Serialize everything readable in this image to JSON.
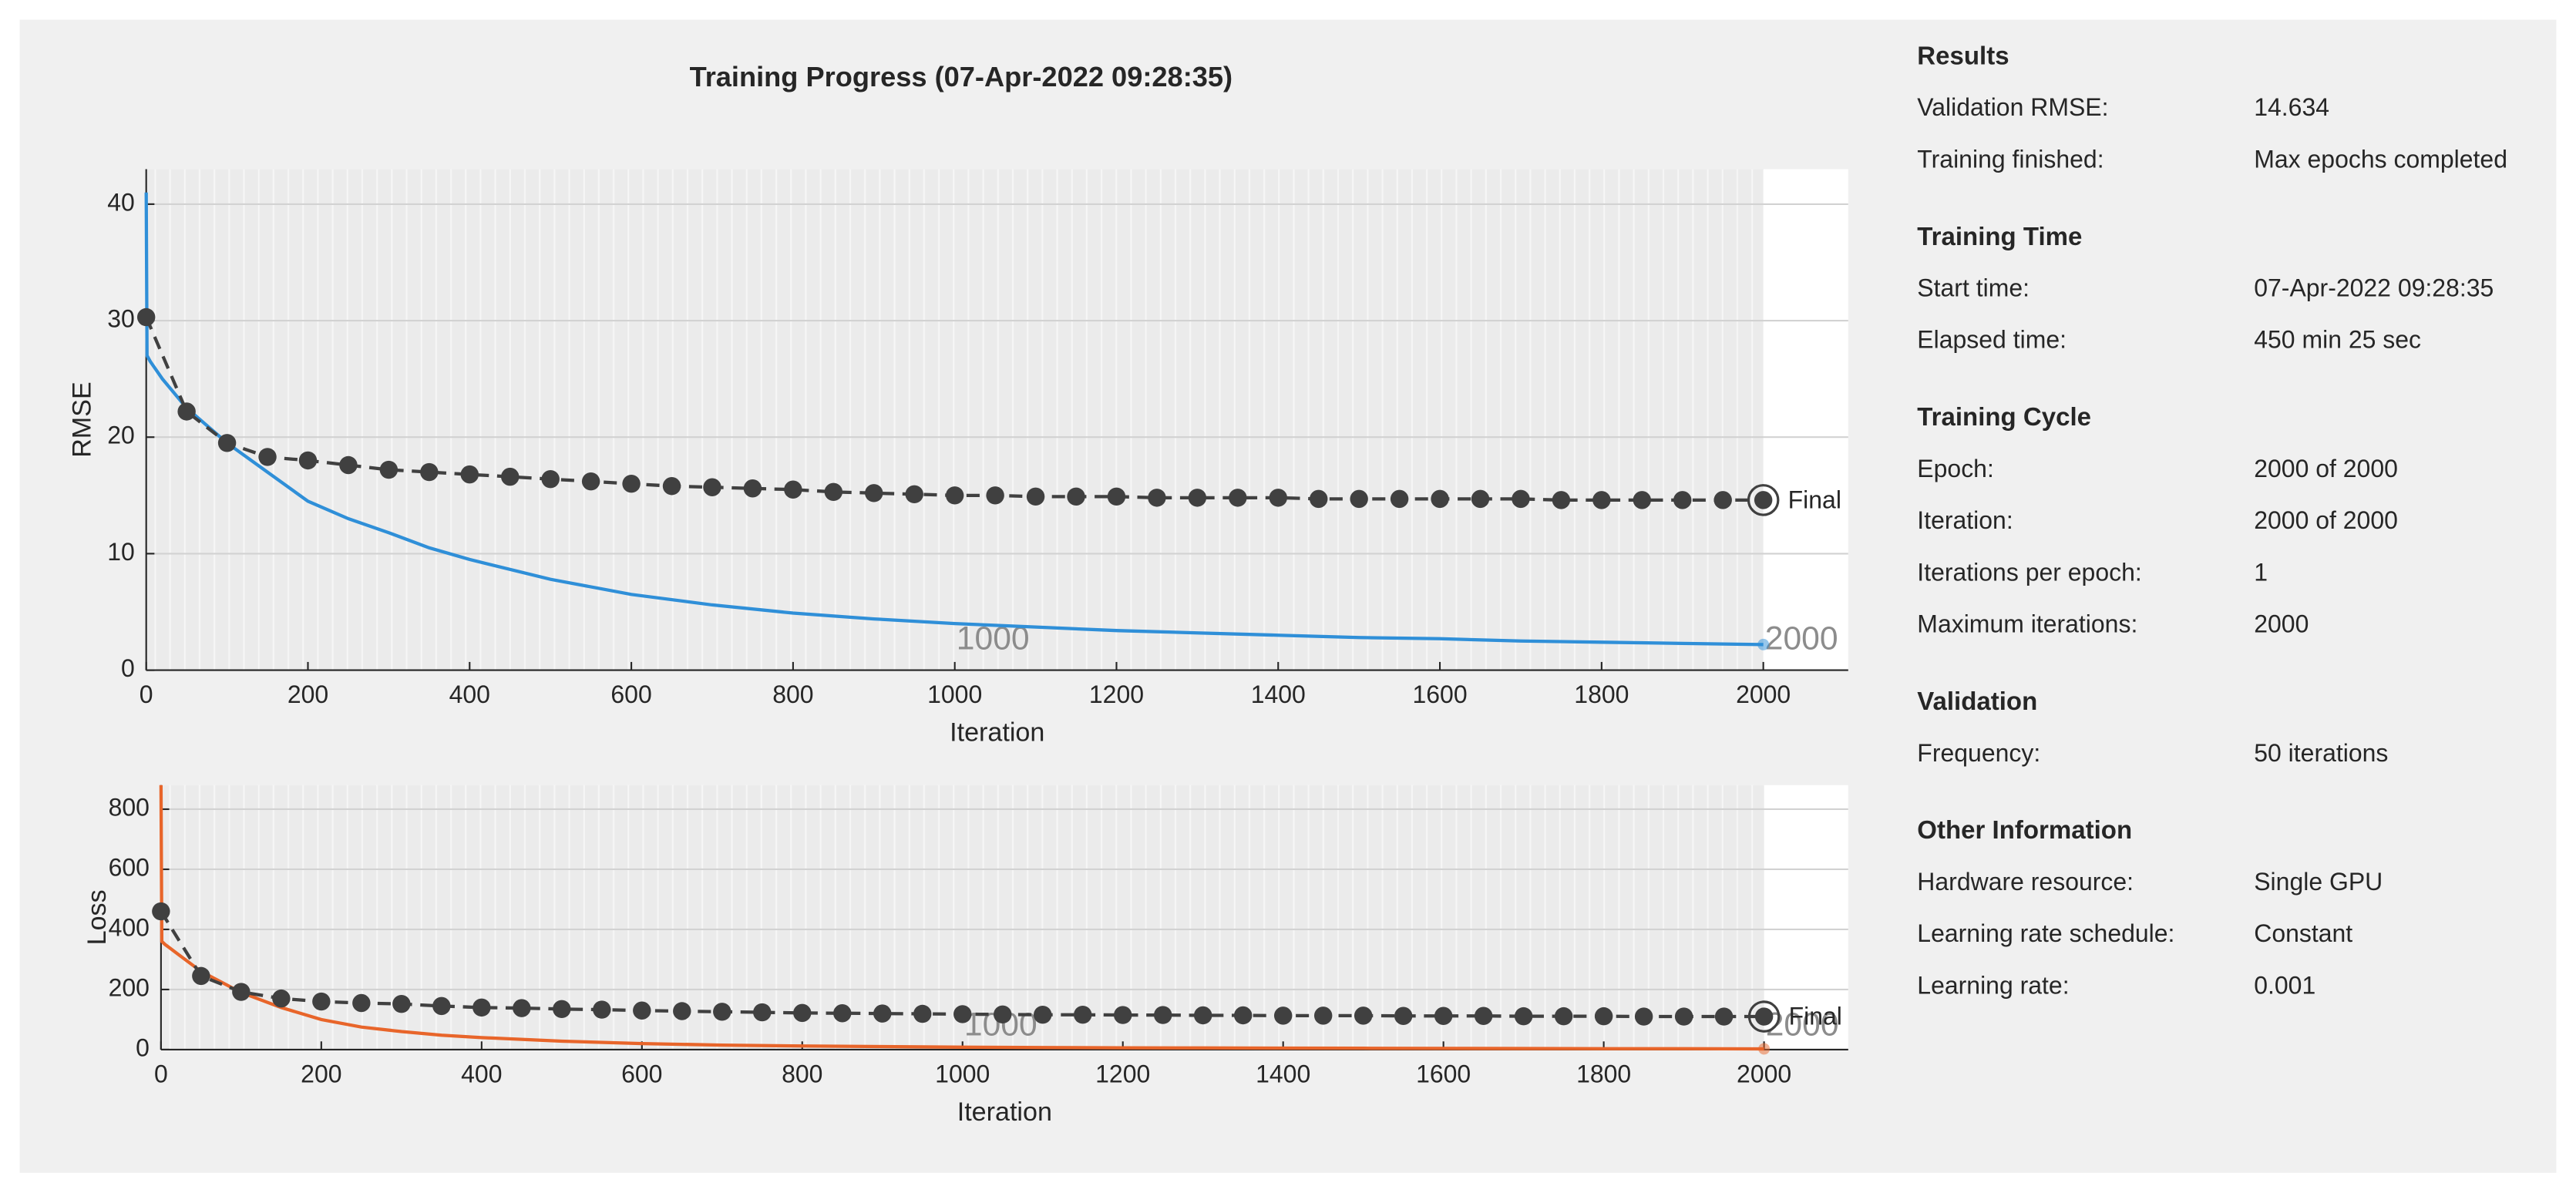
{
  "chart_data": [
    {
      "type": "line",
      "title": "Training Progress (07-Apr-2022 09:28:35)",
      "ylabel": "RMSE",
      "xlabel": "Iteration",
      "xlim": [
        0,
        2105
      ],
      "ylim": [
        0,
        43
      ],
      "xticks": [
        0,
        200,
        400,
        600,
        800,
        1000,
        1200,
        1400,
        1600,
        1800,
        2000
      ],
      "yticks": [
        0,
        10,
        20,
        30,
        40
      ],
      "grid": true,
      "final_label": "Final",
      "epoch_markers": [
        {
          "value": 1000,
          "label": "1000"
        },
        {
          "value": 2000,
          "label": "2000"
        }
      ],
      "series": [
        {
          "color": "#2f8fd8",
          "x": [
            0,
            1,
            5,
            10,
            20,
            50,
            100,
            150,
            200,
            250,
            300,
            350,
            400,
            500,
            600,
            700,
            800,
            900,
            1000,
            1100,
            1200,
            1300,
            1400,
            1500,
            1600,
            1700,
            1800,
            1900,
            2000
          ],
          "values": [
            41,
            27,
            26.5,
            26,
            25,
            22.5,
            19.5,
            17,
            14.5,
            13,
            11.8,
            10.5,
            9.5,
            7.8,
            6.5,
            5.6,
            4.9,
            4.4,
            4.0,
            3.7,
            3.4,
            3.2,
            3.0,
            2.8,
            2.7,
            2.5,
            2.4,
            2.3,
            2.2
          ]
        },
        {
          "color": "#404040",
          "markers": true,
          "x": [
            0,
            50,
            100,
            150,
            200,
            250,
            300,
            350,
            400,
            450,
            500,
            550,
            600,
            650,
            700,
            750,
            800,
            850,
            900,
            950,
            1000,
            1050,
            1100,
            1150,
            1200,
            1250,
            1300,
            1350,
            1400,
            1450,
            1500,
            1550,
            1600,
            1650,
            1700,
            1750,
            1800,
            1850,
            1900,
            1950,
            2000
          ],
          "values": [
            30.3,
            22.2,
            19.5,
            18.3,
            18.0,
            17.6,
            17.2,
            17.0,
            16.8,
            16.6,
            16.4,
            16.2,
            16.0,
            15.8,
            15.7,
            15.6,
            15.5,
            15.3,
            15.2,
            15.1,
            15.0,
            15.0,
            14.9,
            14.9,
            14.9,
            14.8,
            14.8,
            14.8,
            14.8,
            14.7,
            14.7,
            14.7,
            14.7,
            14.7,
            14.7,
            14.6,
            14.6,
            14.6,
            14.6,
            14.6,
            14.6
          ]
        }
      ]
    },
    {
      "type": "line",
      "ylabel": "Loss",
      "xlabel": "Iteration",
      "xlim": [
        0,
        2105
      ],
      "ylim": [
        0,
        880
      ],
      "xticks": [
        0,
        200,
        400,
        600,
        800,
        1000,
        1200,
        1400,
        1600,
        1800,
        2000
      ],
      "yticks": [
        0,
        200,
        400,
        600,
        800
      ],
      "grid": true,
      "final_label": "Final",
      "epoch_markers": [
        {
          "value": 1000,
          "label": "1000"
        },
        {
          "value": 2000,
          "label": "2000"
        }
      ],
      "series": [
        {
          "color": "#e8652a",
          "x": [
            0,
            1,
            5,
            10,
            20,
            50,
            100,
            150,
            200,
            250,
            300,
            350,
            400,
            500,
            600,
            700,
            800,
            900,
            1000,
            1100,
            1200,
            1300,
            1400,
            1500,
            1600,
            1700,
            1800,
            1900,
            2000
          ],
          "values": [
            880,
            360,
            350,
            340,
            320,
            260,
            190,
            140,
            100,
            75,
            60,
            48,
            40,
            28,
            20,
            15,
            12,
            10,
            8,
            7,
            6,
            5.5,
            5,
            4.5,
            4,
            3.5,
            3,
            3,
            2.5
          ]
        },
        {
          "color": "#404040",
          "markers": true,
          "x": [
            0,
            50,
            100,
            150,
            200,
            250,
            300,
            350,
            400,
            450,
            500,
            550,
            600,
            650,
            700,
            750,
            800,
            850,
            900,
            950,
            1000,
            1050,
            1100,
            1150,
            1200,
            1250,
            1300,
            1350,
            1400,
            1450,
            1500,
            1550,
            1600,
            1650,
            1700,
            1750,
            1800,
            1850,
            1900,
            1950,
            2000
          ],
          "values": [
            460,
            245,
            192,
            170,
            160,
            155,
            152,
            145,
            140,
            138,
            135,
            133,
            130,
            128,
            126,
            124,
            122,
            121,
            120,
            119,
            118,
            117,
            116,
            116,
            115,
            115,
            114,
            114,
            113,
            113,
            113,
            112,
            112,
            112,
            111,
            111,
            111,
            110,
            110,
            110,
            110
          ]
        }
      ]
    }
  ],
  "panel": {
    "sections": [
      {
        "title": "Results",
        "rows": [
          [
            "Validation RMSE:",
            "14.634"
          ],
          [
            "Training finished:",
            "Max epochs completed"
          ]
        ]
      },
      {
        "title": "Training Time",
        "rows": [
          [
            "Start time:",
            "07-Apr-2022 09:28:35"
          ],
          [
            "Elapsed time:",
            "450 min 25 sec"
          ]
        ]
      },
      {
        "title": "Training Cycle",
        "rows": [
          [
            "Epoch:",
            "2000 of 2000"
          ],
          [
            "Iteration:",
            "2000 of 2000"
          ],
          [
            "Iterations per epoch:",
            "1"
          ],
          [
            "Maximum iterations:",
            "2000"
          ]
        ]
      },
      {
        "title": "Validation",
        "rows": [
          [
            "Frequency:",
            "50 iterations"
          ]
        ]
      },
      {
        "title": "Other Information",
        "rows": [
          [
            "Hardware resource:",
            "Single GPU"
          ],
          [
            "Learning rate schedule:",
            "Constant"
          ],
          [
            "Learning rate:",
            "0.001"
          ]
        ]
      }
    ]
  }
}
